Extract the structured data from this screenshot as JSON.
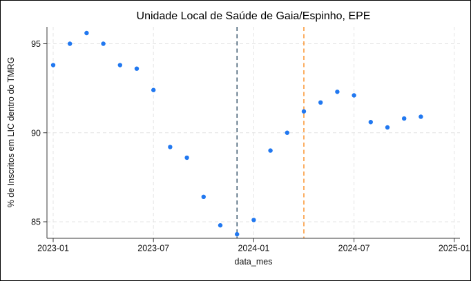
{
  "figure": {
    "background_color": "#ffffff",
    "border_color": "#000000"
  },
  "chart_data": {
    "type": "scatter",
    "title": "Unidade Local de Saúde de Gaia/Espinho, EPE",
    "xlabel": "data_mes",
    "ylabel": "% de Inscritos em LIC dentro do TMRG",
    "x": [
      "2023-01",
      "2023-02",
      "2023-03",
      "2023-04",
      "2023-05",
      "2023-06",
      "2023-07",
      "2023-08",
      "2023-09",
      "2023-10",
      "2023-11",
      "2023-12",
      "2024-01",
      "2024-02",
      "2024-03",
      "2024-04",
      "2024-05",
      "2024-06",
      "2024-07",
      "2024-08",
      "2024-09",
      "2024-10",
      "2024-11"
    ],
    "y": [
      93.8,
      95.0,
      95.6,
      95.0,
      93.8,
      93.6,
      92.4,
      89.2,
      88.6,
      86.4,
      84.8,
      84.3,
      85.1,
      89.0,
      90.0,
      91.2,
      91.7,
      92.3,
      92.1,
      90.6,
      90.3,
      90.8,
      90.9
    ],
    "x_tick_labels": [
      "2023-01",
      "2023-07",
      "2024-01",
      "2024-07",
      "2025-01"
    ],
    "y_tick_labels": [
      "85",
      "90",
      "95"
    ],
    "y_ticks": [
      85,
      90,
      95
    ],
    "ylim": [
      84.0,
      96.0
    ],
    "xlim": [
      "2023-01",
      "2025-01"
    ],
    "grid": true,
    "legend": null,
    "vlines": [
      {
        "x": "2023-12",
        "color": "#2d4b63",
        "style": "dashed"
      },
      {
        "x": "2024-04",
        "color": "#fb8b1e",
        "style": "dashed"
      }
    ],
    "colors": {
      "point": "#2178f0",
      "grid": "#e4e4e4",
      "axis": "#3a3a3a",
      "text": "#111111"
    }
  }
}
